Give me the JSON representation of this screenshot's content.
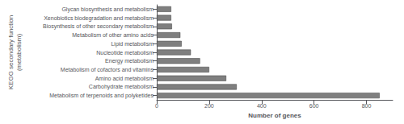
{
  "chart_data": {
    "type": "bar",
    "orientation": "horizontal",
    "categories": [
      "Metabolism of terpenoids and polyketides",
      "Carbohydrate metabolism",
      "Amino acid metabolism",
      "Metabolism of cofactors and vitamins",
      "Energy metabolism",
      "Nucleotide metabolism",
      "Lipid metabolism",
      "Metabolism of other amino acids",
      "Biosynthesis of other secondary metabolism",
      "Xenobiotics biodegradation and metabolism",
      "Glycan biosynthesis and metabolism"
    ],
    "values": [
      850,
      305,
      265,
      200,
      165,
      130,
      95,
      90,
      58,
      55,
      55
    ],
    "color": "#7f7f7f",
    "xlabel": "Number of genes",
    "ylabel": "KEGG secondary function\n(metabolism)",
    "xlim": [
      0,
      900
    ],
    "xticks": [
      0,
      200,
      400,
      600,
      800
    ],
    "grid": false
  }
}
